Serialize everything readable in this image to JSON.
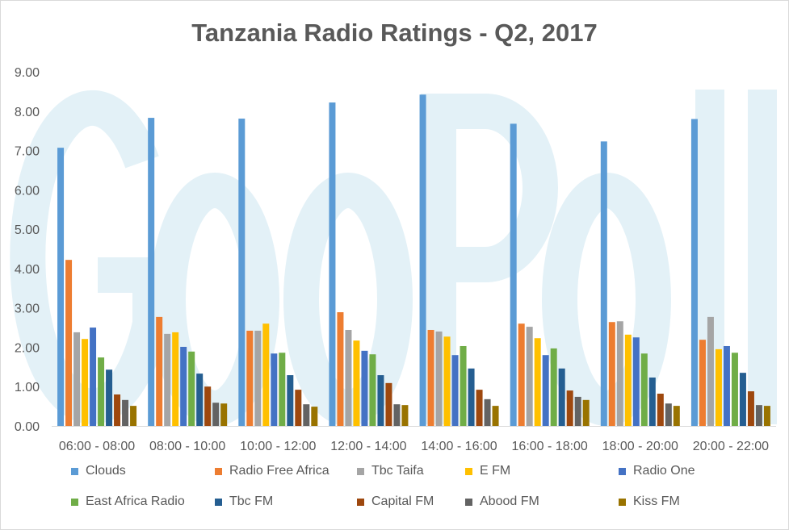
{
  "chart_data": {
    "type": "bar",
    "title": "Tanzania Radio Ratings - Q2, 2017",
    "watermark": "GeoPoll",
    "categories": [
      "06:00 - 08:00",
      "08:00 - 10:00",
      "10:00 - 12:00",
      "12:00 - 14:00",
      "14:00 - 16:00",
      "16:00 - 18:00",
      "18:00 - 20:00",
      "20:00 - 22:00"
    ],
    "ylim": [
      0,
      9
    ],
    "yticks": [
      "0.00",
      "1.00",
      "2.00",
      "3.00",
      "4.00",
      "5.00",
      "6.00",
      "7.00",
      "8.00",
      "9.00"
    ],
    "grid": false,
    "legend": "bottom",
    "series": [
      {
        "name": "Clouds",
        "color": "#5b9bd5",
        "values": [
          7.07,
          7.83,
          7.81,
          8.22,
          8.42,
          7.68,
          7.23,
          7.8
        ]
      },
      {
        "name": "Radio Free Africa",
        "color": "#ed7d31",
        "values": [
          4.22,
          2.77,
          2.42,
          2.89,
          2.44,
          2.6,
          2.64,
          2.19
        ]
      },
      {
        "name": "Tbc Taifa",
        "color": "#a5a5a5",
        "values": [
          2.38,
          2.34,
          2.42,
          2.44,
          2.4,
          2.52,
          2.66,
          2.77
        ]
      },
      {
        "name": "E FM",
        "color": "#ffc000",
        "values": [
          2.21,
          2.38,
          2.6,
          2.17,
          2.27,
          2.23,
          2.32,
          1.95
        ]
      },
      {
        "name": "Radio One",
        "color": "#4472c4",
        "values": [
          2.5,
          2.01,
          1.84,
          1.91,
          1.8,
          1.8,
          2.25,
          2.03
        ]
      },
      {
        "name": "East Africa Radio",
        "color": "#70ad47",
        "values": [
          1.74,
          1.89,
          1.86,
          1.82,
          2.03,
          1.97,
          1.84,
          1.86
        ]
      },
      {
        "name": "Tbc FM",
        "color": "#255e91",
        "values": [
          1.43,
          1.33,
          1.29,
          1.29,
          1.46,
          1.46,
          1.23,
          1.35
        ]
      },
      {
        "name": "Capital FM",
        "color": "#9e480e",
        "values": [
          0.8,
          1.0,
          0.92,
          1.09,
          0.92,
          0.9,
          0.82,
          0.88
        ]
      },
      {
        "name": "Abood FM",
        "color": "#636363",
        "values": [
          0.66,
          0.59,
          0.55,
          0.55,
          0.68,
          0.74,
          0.57,
          0.53
        ]
      },
      {
        "name": "Kiss FM",
        "color": "#997300",
        "values": [
          0.51,
          0.57,
          0.49,
          0.53,
          0.51,
          0.66,
          0.51,
          0.51
        ]
      }
    ]
  }
}
